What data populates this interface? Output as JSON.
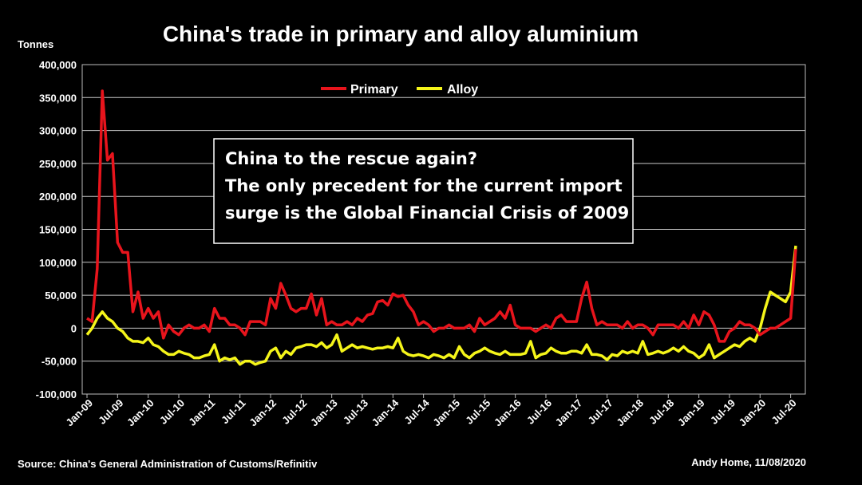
{
  "chart_data": {
    "type": "line",
    "title": "China's trade in primary and alloy aluminium",
    "ylabel": "Tonnes",
    "ylim": [
      -100000,
      400000
    ],
    "yticks": [
      "400,000",
      "350,000",
      "300,000",
      "250,000",
      "200,000",
      "150,000",
      "100,000",
      "50,000",
      "0",
      "-50,000",
      "-100,000"
    ],
    "xticks": [
      "Jan-09",
      "Jul-09",
      "Jan-10",
      "Jul-10",
      "Jan-11",
      "Jul-11",
      "Jan-12",
      "Jul-12",
      "Jan-13",
      "Jul-13",
      "Jan-14",
      "Jul-14",
      "Jan-15",
      "Jul-15",
      "Jan-16",
      "Jul-16",
      "Jan-17",
      "Jul-17",
      "Jan-18",
      "Jul-18",
      "Jan-19",
      "Jul-19",
      "Jan-20",
      "Jul-20"
    ],
    "x_start": "Jan-09",
    "x_end": "Jul-20",
    "grid": true,
    "legend_position": "top-center",
    "annotation": [
      "China to the rescue again?",
      "The only precedent for the current import",
      "surge is the Global Financial Crisis of 2009"
    ],
    "series": [
      {
        "name": "Primary",
        "color": "#e8141c",
        "values": [
          15000,
          10000,
          90000,
          360000,
          255000,
          265000,
          130000,
          115000,
          115000,
          25000,
          55000,
          15000,
          30000,
          15000,
          25000,
          -15000,
          5000,
          -5000,
          -10000,
          0,
          5000,
          0,
          0,
          5000,
          -5000,
          30000,
          15000,
          15000,
          5000,
          5000,
          0,
          -10000,
          10000,
          10000,
          10000,
          5000,
          45000,
          30000,
          68000,
          50000,
          30000,
          25000,
          30000,
          30000,
          52000,
          20000,
          45000,
          5000,
          10000,
          5000,
          5000,
          10000,
          5000,
          15000,
          10000,
          20000,
          22000,
          40000,
          42000,
          35000,
          52000,
          48000,
          50000,
          35000,
          25000,
          5000,
          10000,
          5000,
          -5000,
          0,
          0,
          5000,
          0,
          0,
          0,
          5000,
          -5000,
          15000,
          5000,
          10000,
          15000,
          25000,
          15000,
          35000,
          5000,
          0,
          0,
          0,
          -5000,
          0,
          5000,
          0,
          15000,
          20000,
          10000,
          10000,
          10000,
          45000,
          70000,
          30000,
          5000,
          10000,
          5000,
          5000,
          5000,
          0,
          10000,
          0,
          5000,
          5000,
          0,
          -10000,
          5000,
          5000,
          5000,
          5000,
          0,
          10000,
          0,
          20000,
          5000,
          25000,
          20000,
          5000,
          -20000,
          -20000,
          -5000,
          0,
          10000,
          5000,
          5000,
          0,
          -10000,
          -5000,
          0,
          0,
          5000,
          10000,
          15000,
          120000
        ]
      },
      {
        "name": "Alloy",
        "color": "#f5f51a",
        "values": [
          -10000,
          0,
          15000,
          25000,
          15000,
          10000,
          0,
          -5000,
          -15000,
          -20000,
          -20000,
          -22000,
          -15000,
          -25000,
          -28000,
          -35000,
          -40000,
          -40000,
          -35000,
          -38000,
          -40000,
          -45000,
          -45000,
          -42000,
          -40000,
          -25000,
          -50000,
          -45000,
          -48000,
          -45000,
          -55000,
          -50000,
          -50000,
          -55000,
          -52000,
          -50000,
          -35000,
          -30000,
          -45000,
          -35000,
          -40000,
          -30000,
          -28000,
          -25000,
          -25000,
          -28000,
          -22000,
          -30000,
          -25000,
          -10000,
          -35000,
          -30000,
          -25000,
          -30000,
          -28000,
          -30000,
          -32000,
          -30000,
          -30000,
          -28000,
          -30000,
          -15000,
          -35000,
          -40000,
          -42000,
          -40000,
          -42000,
          -45000,
          -40000,
          -42000,
          -45000,
          -40000,
          -45000,
          -28000,
          -40000,
          -45000,
          -38000,
          -35000,
          -30000,
          -35000,
          -38000,
          -40000,
          -35000,
          -40000,
          -40000,
          -40000,
          -38000,
          -20000,
          -45000,
          -40000,
          -38000,
          -30000,
          -35000,
          -38000,
          -38000,
          -35000,
          -35000,
          -38000,
          -25000,
          -40000,
          -40000,
          -42000,
          -48000,
          -40000,
          -42000,
          -35000,
          -38000,
          -35000,
          -38000,
          -20000,
          -40000,
          -38000,
          -35000,
          -38000,
          -35000,
          -30000,
          -35000,
          -28000,
          -35000,
          -38000,
          -45000,
          -40000,
          -25000,
          -45000,
          -40000,
          -35000,
          -30000,
          -25000,
          -28000,
          -20000,
          -15000,
          -20000,
          0,
          30000,
          55000,
          50000,
          45000,
          40000,
          55000,
          125000
        ]
      }
    ]
  },
  "footer": {
    "source": "Source: China's General Administration of Customs/Refinitiv",
    "author": "Andy Home, 11/08/2020"
  }
}
